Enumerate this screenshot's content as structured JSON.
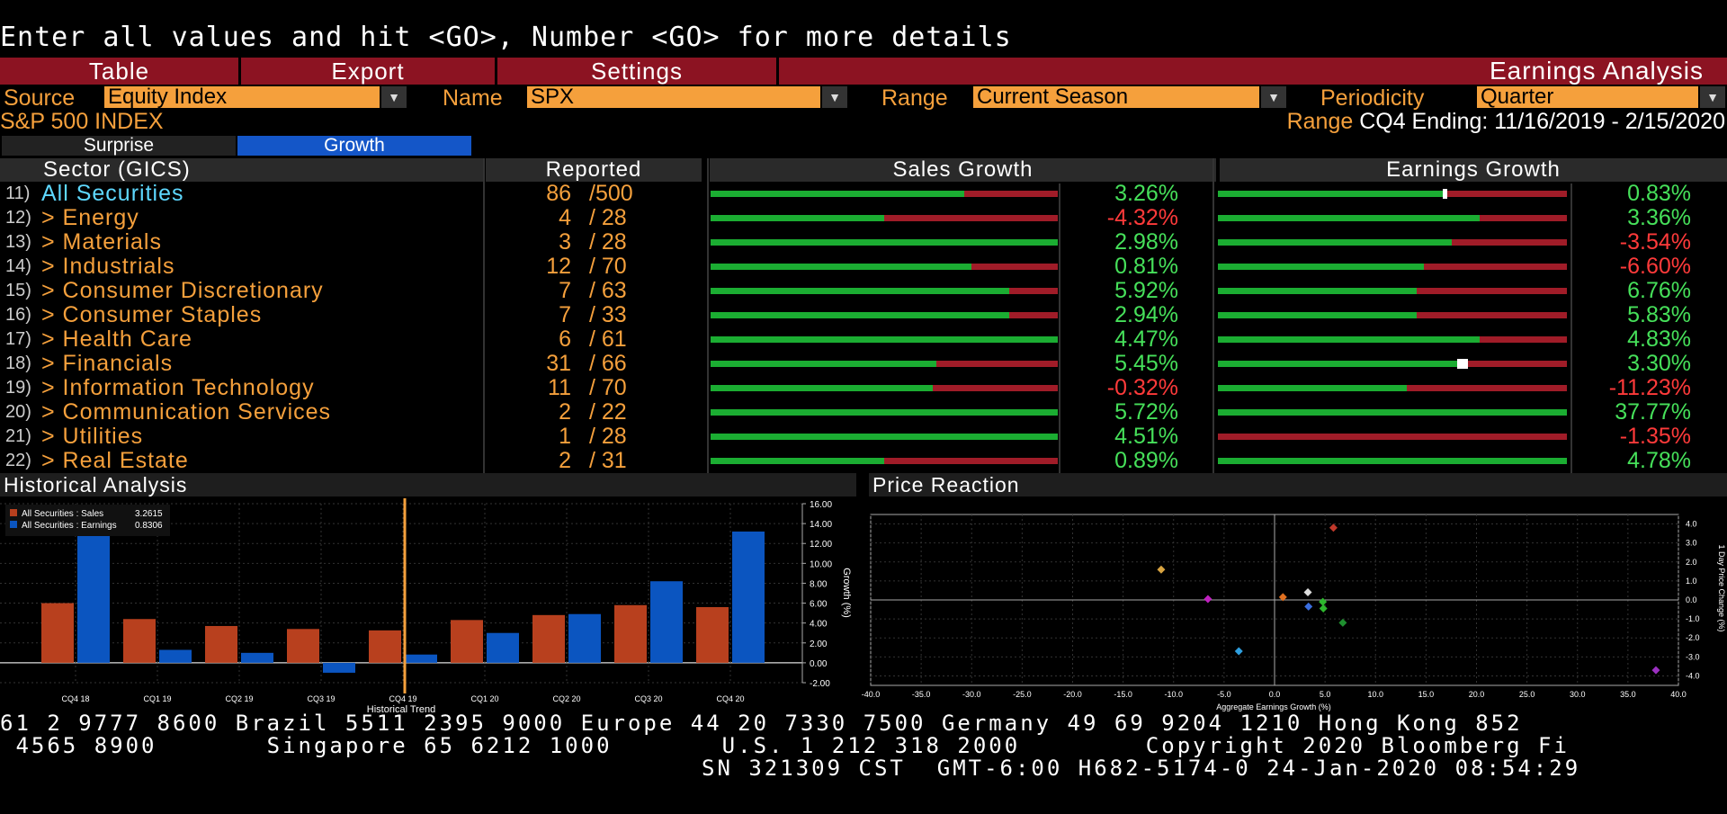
{
  "command_line": "Enter all values and hit <GO>, Number <GO> for more details",
  "menu": {
    "table": "Table",
    "export": "Export",
    "settings": "Settings",
    "title": "Earnings Analysis"
  },
  "params": {
    "source_label": "Source",
    "source_value": "Equity Index",
    "name_label": "Name",
    "name_value": "SPX",
    "range_label": "Range",
    "range_value": "Current Season",
    "periodicity_label": "Periodicity",
    "periodicity_value": "Quarter"
  },
  "index_name": "S&P 500 INDEX",
  "range_info_label": "Range",
  "range_info_value": "CQ4 Ending: 11/16/2019 - 2/15/2020",
  "tabs": {
    "surprise": "Surprise",
    "growth": "Growth"
  },
  "columns": {
    "sector": "Sector (GICS)",
    "reported": "Reported",
    "sales_growth": "Sales Growth",
    "earnings_growth": "Earnings Growth"
  },
  "rows": [
    {
      "num": "11)",
      "name": "All Securities",
      "rep": "86",
      "total": "/500",
      "sales": "3.26%",
      "sales_pct": 0.73,
      "sales_neg": false,
      "earn": "0.83%",
      "earn_pct": 0.65,
      "earn_neg": false,
      "earn_mark": true,
      "highlight": true
    },
    {
      "num": "12)",
      "name": "> Energy",
      "rep": "4",
      "total": "/ 28",
      "sales": "-4.32%",
      "sales_pct": 0.5,
      "sales_neg": true,
      "earn": "3.36%",
      "earn_pct": 0.75,
      "earn_neg": false,
      "earn_mark": false
    },
    {
      "num": "13)",
      "name": "> Materials",
      "rep": "3",
      "total": "/ 28",
      "sales": "2.98%",
      "sales_pct": 1.0,
      "sales_neg": false,
      "earn": "-3.54%",
      "earn_pct": 0.67,
      "earn_neg": true,
      "earn_mark": false
    },
    {
      "num": "14)",
      "name": "> Industrials",
      "rep": "12",
      "total": "/ 70",
      "sales": "0.81%",
      "sales_pct": 0.75,
      "sales_neg": false,
      "earn": "-6.60%",
      "earn_pct": 0.59,
      "earn_neg": true,
      "earn_mark": false
    },
    {
      "num": "15)",
      "name": "> Consumer Discretionary",
      "rep": "7",
      "total": "/ 63",
      "sales": "5.92%",
      "sales_pct": 0.86,
      "sales_neg": false,
      "earn": "6.76%",
      "earn_pct": 0.57,
      "earn_neg": false,
      "earn_mark": false
    },
    {
      "num": "16)",
      "name": "> Consumer Staples",
      "rep": "7",
      "total": "/ 33",
      "sales": "2.94%",
      "sales_pct": 0.86,
      "sales_neg": false,
      "earn": "5.83%",
      "earn_pct": 0.57,
      "earn_neg": false,
      "earn_mark": false
    },
    {
      "num": "17)",
      "name": "> Health Care",
      "rep": "6",
      "total": "/ 61",
      "sales": "4.47%",
      "sales_pct": 1.0,
      "sales_neg": false,
      "earn": "4.83%",
      "earn_pct": 0.75,
      "earn_neg": false,
      "earn_mark": false
    },
    {
      "num": "18)",
      "name": "> Financials",
      "rep": "31",
      "total": "/ 66",
      "sales": "5.45%",
      "sales_pct": 0.65,
      "sales_neg": false,
      "earn": "3.30%",
      "earn_pct": 0.69,
      "earn_neg": false,
      "earn_mark": true
    },
    {
      "num": "19)",
      "name": "> Information Technology",
      "rep": "11",
      "total": "/ 70",
      "sales": "-0.32%",
      "sales_pct": 0.64,
      "sales_neg": true,
      "earn": "-11.23%",
      "earn_pct": 0.54,
      "earn_neg": true,
      "earn_mark": false
    },
    {
      "num": "20)",
      "name": "> Communication Services",
      "rep": "2",
      "total": "/ 22",
      "sales": "5.72%",
      "sales_pct": 1.0,
      "sales_neg": false,
      "earn": "37.77%",
      "earn_pct": 1.0,
      "earn_neg": false,
      "earn_mark": false
    },
    {
      "num": "21)",
      "name": "> Utilities",
      "rep": "1",
      "total": "/ 28",
      "sales": "4.51%",
      "sales_pct": 1.0,
      "sales_neg": false,
      "earn": "-1.35%",
      "earn_pct": 0.0,
      "earn_neg": true,
      "earn_mark": false
    },
    {
      "num": "22)",
      "name": "> Real Estate",
      "rep": "2",
      "total": "/ 31",
      "sales": "0.89%",
      "sales_pct": 0.5,
      "sales_neg": false,
      "earn": "4.78%",
      "earn_pct": 1.0,
      "earn_neg": false,
      "earn_mark": false
    }
  ],
  "colors": {
    "positive": "#46e05a",
    "negative": "#ff3a3a",
    "sales": "#b8401e",
    "earnings": "#0b55c0",
    "accent": "#f5a03c"
  },
  "historical": {
    "title": "Historical Analysis",
    "legend_sales": "All Securities : Sales",
    "legend_sales_value": "3.2615",
    "legend_earn": "All Securities : Earnings",
    "legend_earn_value": "0.8306",
    "xlabel": "Historical Trend",
    "ylabel": "Growth (%)"
  },
  "price_reaction": {
    "title": "Price Reaction",
    "xlabel": "Aggregate Earnings Growth (%)",
    "ylabel": "1 Day Price Change (%)"
  },
  "chart_data": [
    {
      "type": "bar",
      "title": "Historical Analysis",
      "categories": [
        "CQ4 18",
        "CQ1 19",
        "CQ2 19",
        "CQ3 19",
        "CQ4 19",
        "CQ1 20",
        "CQ2 20",
        "CQ3 20",
        "CQ4 20"
      ],
      "series": [
        {
          "name": "All Securities : Sales",
          "values": [
            6.0,
            4.4,
            3.7,
            3.4,
            3.26,
            4.3,
            4.8,
            5.8,
            5.6
          ]
        },
        {
          "name": "All Securities : Earnings",
          "values": [
            13.0,
            1.3,
            1.0,
            -1.0,
            0.83,
            3.0,
            4.9,
            8.2,
            13.2
          ]
        }
      ],
      "xlabel": "Historical Trend",
      "ylabel": "Growth (%)",
      "ylim": [
        -2.0,
        16.0
      ],
      "yticks": [
        "16.00",
        "14.00",
        "12.00",
        "10.00",
        "8.00",
        "6.00",
        "4.00",
        "2.00",
        "0.00",
        "-2.00"
      ],
      "current_marker": "CQ4 19",
      "grid": true,
      "legend": "top-left"
    },
    {
      "type": "scatter",
      "title": "Price Reaction",
      "xlabel": "Aggregate Earnings Growth (%)",
      "ylabel": "1 Day Price Change (%)",
      "xlim": [
        -40,
        40
      ],
      "ylim": [
        -4.5,
        4.5
      ],
      "xticks": [
        "-40.0",
        "-35.0",
        "-30.0",
        "-25.0",
        "-20.0",
        "-15.0",
        "-10.0",
        "-5.0",
        "0.0",
        "5.0",
        "10.0",
        "15.0",
        "20.0",
        "25.0",
        "30.0",
        "35.0",
        "40.0"
      ],
      "yticks": [
        "4.0",
        "3.0",
        "2.0",
        "1.0",
        "0.0",
        "-1.0",
        "-2.0",
        "-3.0",
        "-4.0"
      ],
      "points": [
        {
          "x": 5.83,
          "y": 3.8,
          "color": "#c0392b"
        },
        {
          "x": -11.23,
          "y": 1.6,
          "color": "#d9a441"
        },
        {
          "x": -6.6,
          "y": 0.05,
          "color": "#c020c0"
        },
        {
          "x": 0.83,
          "y": 0.15,
          "color": "#e07020"
        },
        {
          "x": 3.3,
          "y": 0.4,
          "color": "#dddddd"
        },
        {
          "x": 3.36,
          "y": -0.35,
          "color": "#3a6ee0"
        },
        {
          "x": 4.78,
          "y": -0.1,
          "color": "#2eb82e"
        },
        {
          "x": 4.83,
          "y": -0.45,
          "color": "#2eb82e"
        },
        {
          "x": 6.76,
          "y": -1.2,
          "color": "#1f8f2f"
        },
        {
          "x": -3.54,
          "y": -2.7,
          "color": "#2fa0e0"
        },
        {
          "x": 37.77,
          "y": -3.7,
          "color": "#9b30c0"
        }
      ]
    }
  ],
  "footer": {
    "line1": "61 2 9777 8600 Brazil 5511 2395 9000 Europe 44 20 7330 7500 Germany 49 69 9204 1210 Hong Kong 852",
    "line2": " 4565 8900       Singapore 65 6212 1000       U.S. 1 212 318 2000        Copyright 2020 Bloomberg Fi",
    "line3": "SN 321309 CST  GMT-6:00 H682-5174-0 24-Jan-2020 08:54:29"
  }
}
